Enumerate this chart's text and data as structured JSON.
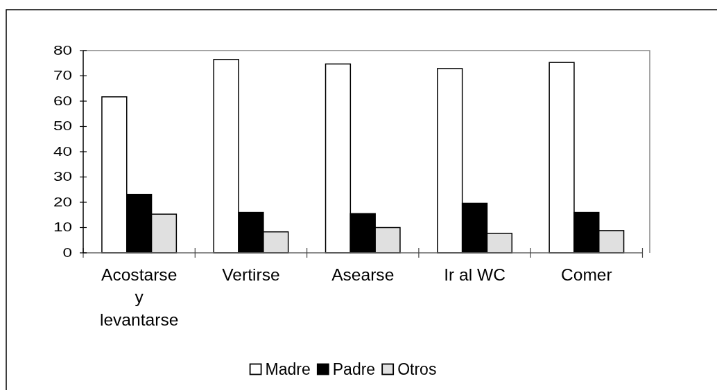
{
  "chart_data": {
    "type": "bar",
    "categories": [
      "Acostarse y levantarse",
      "Vertirse",
      "Asearse",
      "Ir al WC",
      "Comer"
    ],
    "series": [
      {
        "name": "Madre",
        "color": "#ffffff",
        "values": [
          61.7,
          76.5,
          74.7,
          72.9,
          75.3
        ]
      },
      {
        "name": "Padre",
        "color": "#000000",
        "values": [
          23.1,
          16.0,
          15.5,
          19.6,
          16.0
        ]
      },
      {
        "name": "Otros",
        "color": "#e0e0e0",
        "values": [
          15.3,
          8.3,
          10.0,
          7.7,
          8.8
        ]
      }
    ],
    "ylim": [
      0,
      80
    ],
    "yticks": [
      0,
      10,
      20,
      30,
      40,
      50,
      60,
      70,
      80
    ],
    "legend": "bottom"
  }
}
